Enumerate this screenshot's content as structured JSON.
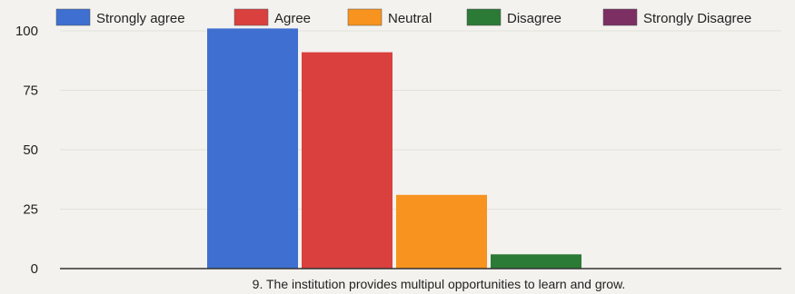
{
  "chart_data": {
    "type": "bar",
    "title": "",
    "xlabel": "",
    "ylabel": "",
    "categories": [
      "9. The institution provides multipul opportunities to learn and grow."
    ],
    "series": [
      {
        "name": "Strongly agree",
        "color": "#3f6fd0",
        "values": [
          101
        ]
      },
      {
        "name": "Agree",
        "color": "#d9403e",
        "values": [
          91
        ]
      },
      {
        "name": "Neutral",
        "color": "#f7931e",
        "values": [
          31
        ]
      },
      {
        "name": "Disagree",
        "color": "#2b7a35",
        "values": [
          6
        ]
      },
      {
        "name": "Strongly Disagree",
        "color": "#7b2f63",
        "values": [
          0
        ]
      }
    ],
    "ylim": [
      0,
      100
    ],
    "yticks": [
      0,
      25,
      50,
      75,
      100
    ],
    "legend_position": "top",
    "grid": true
  }
}
